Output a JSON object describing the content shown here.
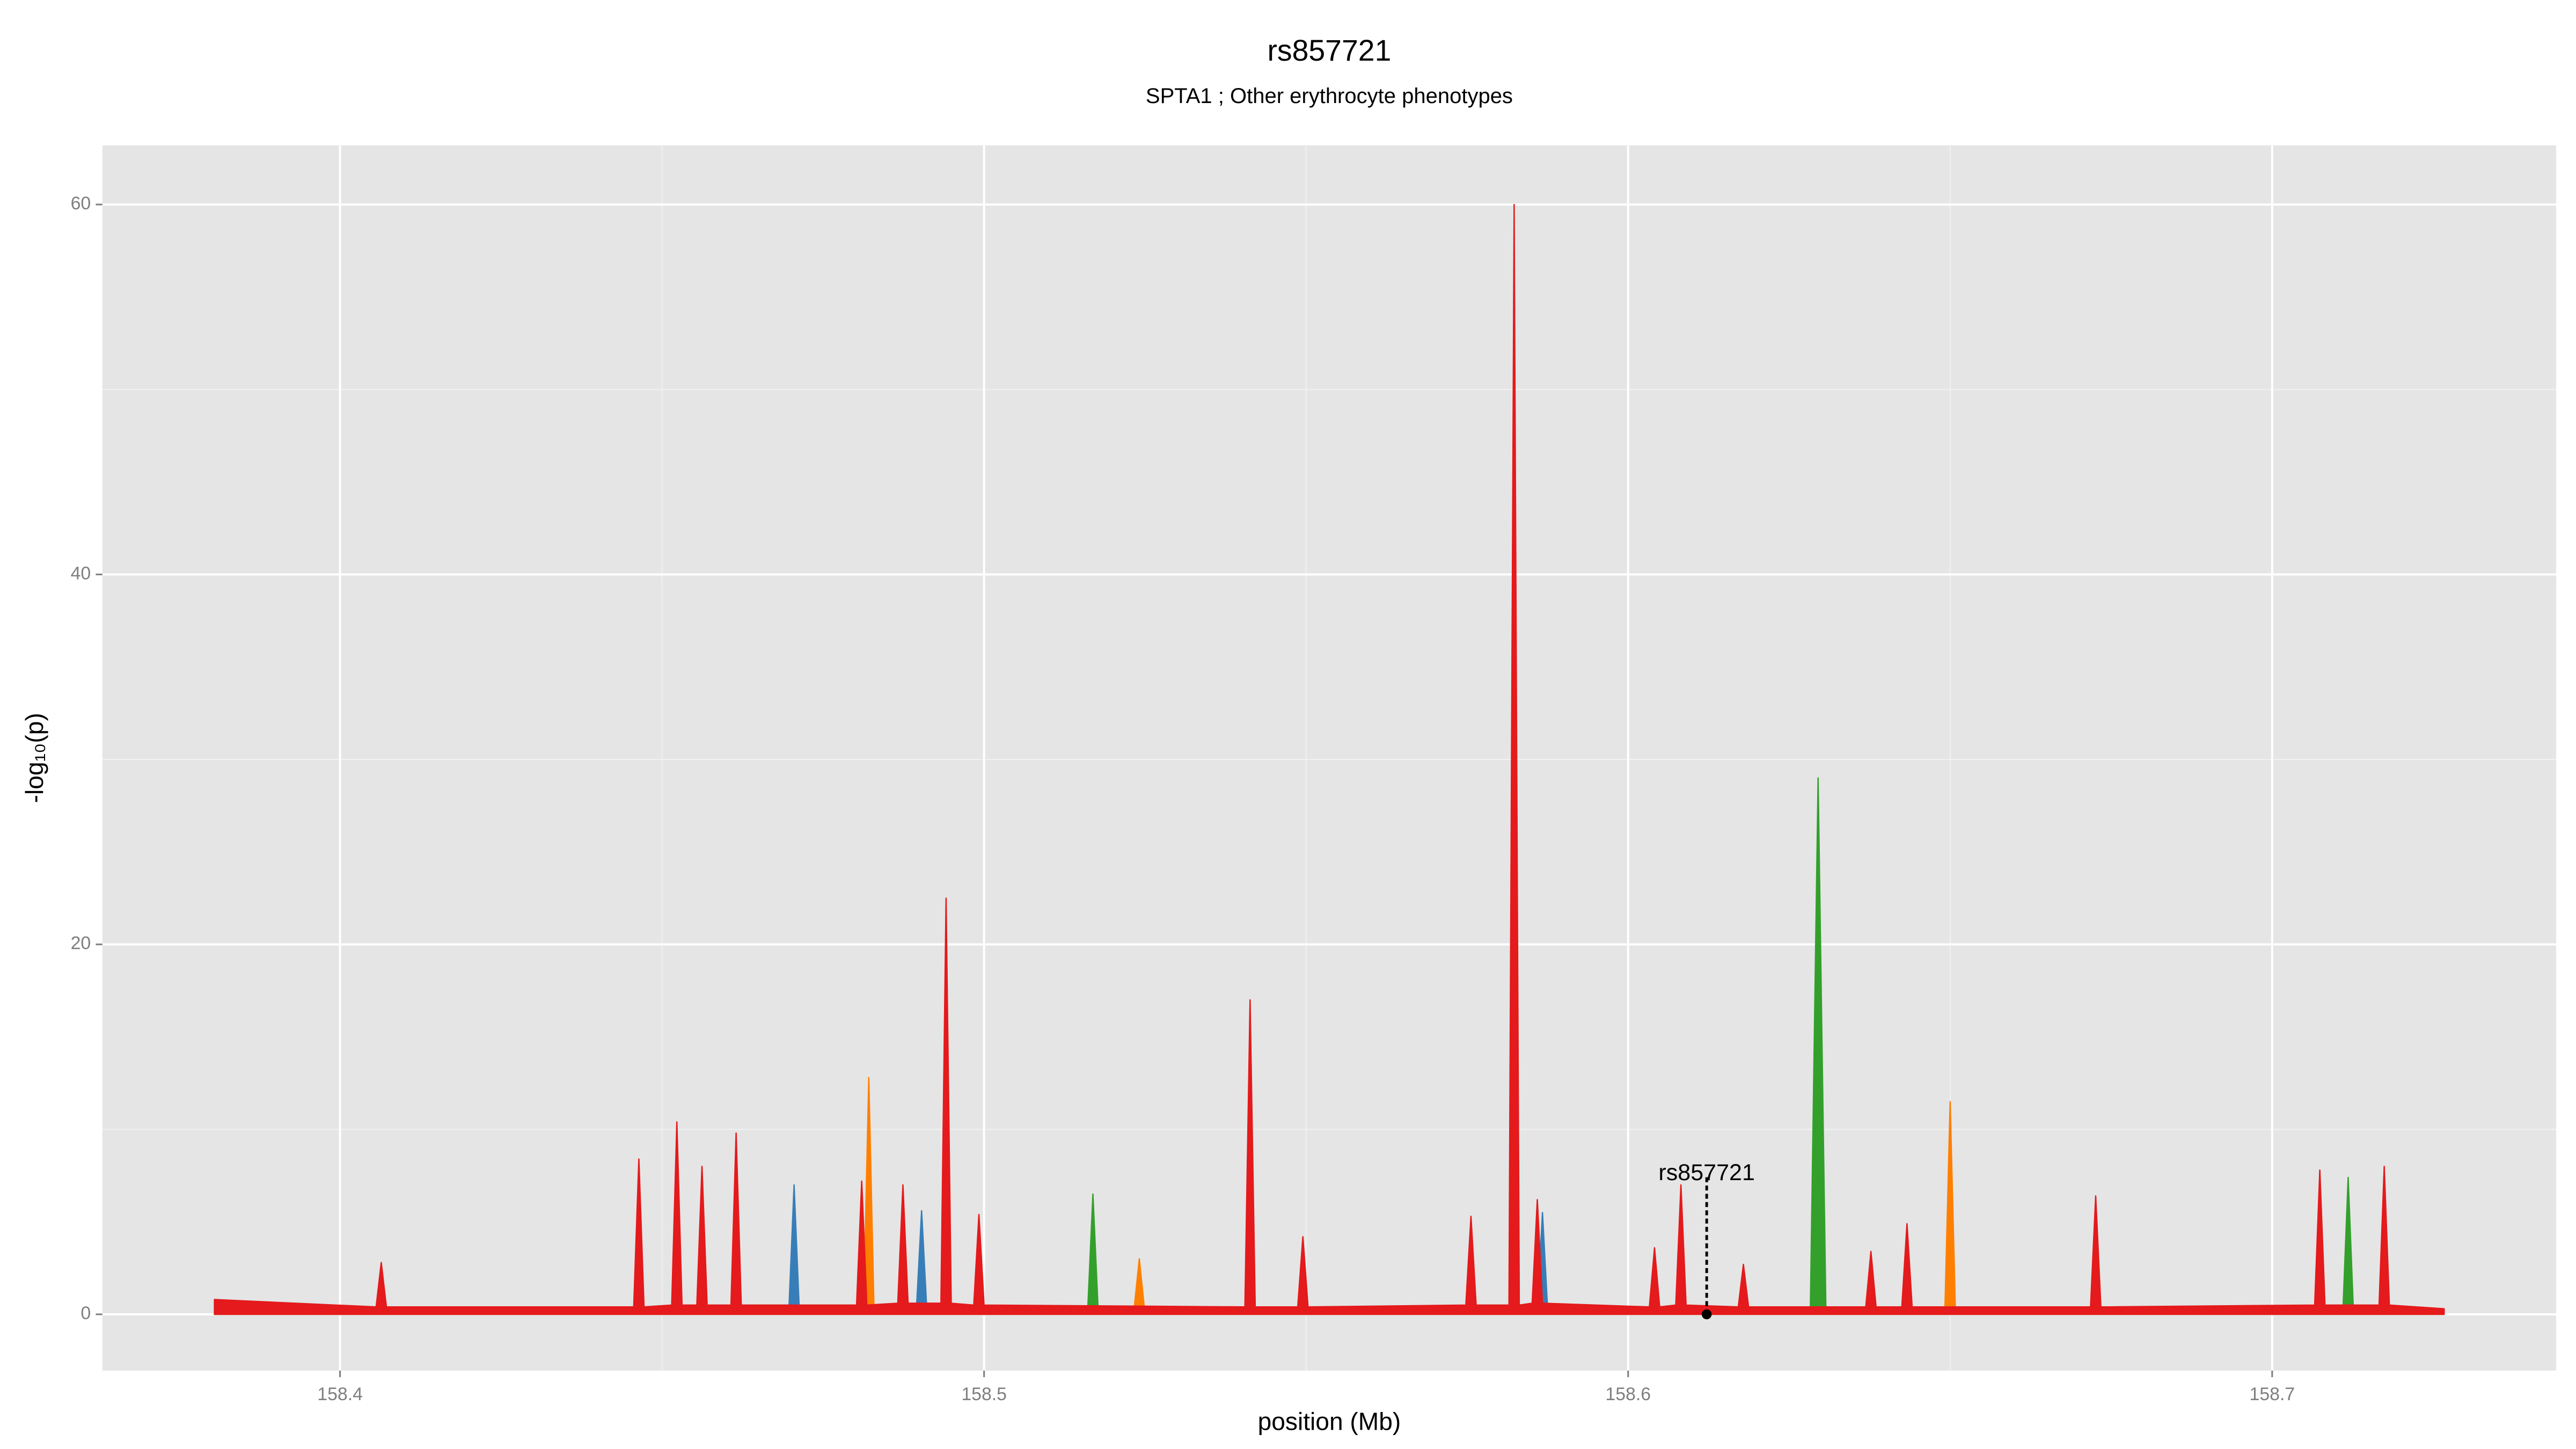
{
  "chart_data": {
    "type": "area",
    "title": "rs857721",
    "subtitle": "SPTA1 ; Other erythrocyte phenotypes",
    "x_label": "position (Mb)",
    "y_label": "-log₁₀(p)",
    "xlim": [
      158.3631,
      158.7441
    ],
    "ylim": [
      -3.04,
      63.2
    ],
    "xticks": [
      158.4,
      158.5,
      158.6,
      158.7
    ],
    "yticks": [
      0,
      20,
      40,
      60
    ],
    "grid": true,
    "series": [
      {
        "color": "#377eb8",
        "x": [
          158.3805,
          158.4697,
          158.4705,
          158.4713,
          158.4895,
          158.4903,
          158.4911,
          158.5859,
          158.5867,
          158.5875,
          158.7267
        ],
        "values": [
          0,
          0.3,
          7.0,
          0.3,
          0.3,
          5.6,
          0.3,
          0.3,
          5.5,
          0.3,
          0
        ]
      },
      {
        "color": "#ff7f00",
        "x": [
          158.3805,
          158.4813,
          158.4821,
          158.4829,
          158.5233,
          158.5241,
          158.5249,
          158.6492,
          158.65,
          158.6508,
          158.7267
        ],
        "values": [
          0,
          0.4,
          12.8,
          0.4,
          0.3,
          3.0,
          0.3,
          0.4,
          11.5,
          0.4,
          0
        ]
      },
      {
        "color": "#33a02c",
        "x": [
          158.3805,
          158.5161,
          158.5169,
          158.5177,
          158.6283,
          158.6295,
          158.6307,
          158.711,
          158.7118,
          158.7126,
          158.7267
        ],
        "values": [
          0,
          0.3,
          6.5,
          0.3,
          0.4,
          29.0,
          0.4,
          0.3,
          7.4,
          0.3,
          0
        ]
      },
      {
        "color": "#e41a1c",
        "x": [
          158.3805,
          158.4056,
          158.4064,
          158.4072,
          158.4456,
          158.4464,
          158.4472,
          158.4515,
          158.4523,
          158.4531,
          158.4554,
          158.4562,
          158.457,
          158.4607,
          158.4615,
          158.4623,
          158.4802,
          158.481,
          158.4818,
          158.4866,
          158.4874,
          158.4882,
          158.4933,
          158.4941,
          158.4949,
          158.4984,
          158.4992,
          158.5,
          158.5405,
          158.5413,
          158.5421,
          158.5487,
          158.5495,
          158.5503,
          158.5748,
          158.5756,
          158.5764,
          158.5815,
          158.5823,
          158.5831,
          158.5851,
          158.5859,
          158.5867,
          158.6033,
          158.6041,
          158.6049,
          158.6074,
          158.6082,
          158.609,
          158.6171,
          158.6179,
          158.6187,
          158.6369,
          158.6377,
          158.6385,
          158.6425,
          158.6433,
          158.6441,
          158.6718,
          158.6726,
          158.6734,
          158.7066,
          158.7074,
          158.7082,
          158.7166,
          158.7174,
          158.7182,
          158.7267
        ],
        "values": [
          0.8,
          0.4,
          2.8,
          0.4,
          0.4,
          8.4,
          0.4,
          0.5,
          10.4,
          0.5,
          0.5,
          8.0,
          0.5,
          0.5,
          9.8,
          0.5,
          0.5,
          7.2,
          0.5,
          0.6,
          7.0,
          0.6,
          0.6,
          22.5,
          0.6,
          0.5,
          5.4,
          0.5,
          0.4,
          17.0,
          0.4,
          0.4,
          4.2,
          0.4,
          0.5,
          5.3,
          0.5,
          0.5,
          60.0,
          0.5,
          0.6,
          6.2,
          0.6,
          0.4,
          3.6,
          0.4,
          0.5,
          7.0,
          0.5,
          0.4,
          2.7,
          0.4,
          0.4,
          3.4,
          0.4,
          0.4,
          4.9,
          0.4,
          0.4,
          6.4,
          0.4,
          0.5,
          7.8,
          0.5,
          0.5,
          8.0,
          0.5,
          0.3
        ]
      }
    ],
    "annotation": {
      "text": "rs857721",
      "x": 158.6122,
      "y": 7.5
    }
  }
}
